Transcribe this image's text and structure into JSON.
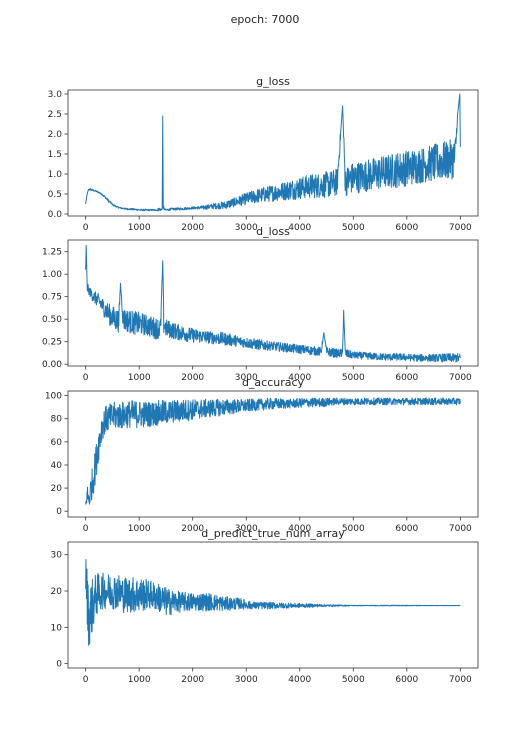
{
  "figure": {
    "suptitle": "epoch:  7000"
  },
  "colors": {
    "line": "#1f77b4",
    "axes": "#333333",
    "text": "#262626"
  },
  "chart_data": [
    {
      "type": "line",
      "title": "g_loss",
      "xlim": [
        -330,
        7330
      ],
      "ylim": [
        -0.05,
        3.1
      ],
      "xticks": [
        0,
        1000,
        2000,
        3000,
        4000,
        5000,
        6000,
        7000
      ],
      "xtick_labels": [
        "0",
        "1000",
        "2000",
        "3000",
        "4000",
        "5000",
        "6000",
        "7000"
      ],
      "yticks": [
        0.0,
        0.5,
        1.0,
        1.5,
        2.0,
        2.5,
        3.0
      ],
      "ytick_labels": [
        "0.0",
        "0.5",
        "1.0",
        "1.5",
        "2.0",
        "2.5",
        "3.0"
      ],
      "series": [
        {
          "x": [
            0,
            20,
            50,
            80,
            120,
            170,
            230,
            300,
            380,
            450,
            520,
            580,
            650,
            750,
            850,
            950,
            1050,
            1150,
            1250,
            1330,
            1380,
            1410,
            1430,
            1440,
            1450,
            1470,
            1500,
            1600,
            1800,
            2000,
            2200,
            2400,
            2600,
            2800,
            3000,
            3200,
            3400,
            3600,
            3800,
            4000,
            4200,
            4400,
            4600,
            4700,
            4800,
            4850,
            4900,
            5000,
            5200,
            5400,
            5600,
            5800,
            6000,
            6200,
            6400,
            6600,
            6800,
            6900,
            6950,
            6990,
            7000
          ],
          "y": [
            0.25,
            0.45,
            0.6,
            0.62,
            0.6,
            0.58,
            0.55,
            0.5,
            0.4,
            0.3,
            0.22,
            0.18,
            0.15,
            0.13,
            0.12,
            0.11,
            0.1,
            0.1,
            0.1,
            0.1,
            0.12,
            0.1,
            0.15,
            2.45,
            0.18,
            0.12,
            0.1,
            0.12,
            0.13,
            0.15,
            0.16,
            0.2,
            0.22,
            0.3,
            0.38,
            0.45,
            0.5,
            0.55,
            0.6,
            0.65,
            0.7,
            0.72,
            0.75,
            0.8,
            2.7,
            0.8,
            0.85,
            0.9,
            0.95,
            1.0,
            1.05,
            1.1,
            1.15,
            1.2,
            1.25,
            1.3,
            1.35,
            1.4,
            2.5,
            3.0,
            1.4
          ],
          "noise": [
            0.0,
            0.0,
            0.02,
            0.03,
            0.02,
            0.02,
            0.02,
            0.02,
            0.03,
            0.03,
            0.02,
            0.02,
            0.02,
            0.02,
            0.02,
            0.02,
            0.02,
            0.02,
            0.02,
            0.02,
            0.05,
            0.02,
            0.05,
            0.0,
            0.05,
            0.02,
            0.02,
            0.03,
            0.03,
            0.03,
            0.05,
            0.07,
            0.1,
            0.12,
            0.15,
            0.18,
            0.2,
            0.22,
            0.25,
            0.28,
            0.3,
            0.32,
            0.34,
            0.35,
            0.0,
            0.36,
            0.38,
            0.4,
            0.4,
            0.42,
            0.42,
            0.45,
            0.45,
            0.45,
            0.45,
            0.48,
            0.5,
            0.5,
            0.0,
            0.0,
            0.5
          ]
        }
      ]
    },
    {
      "type": "line",
      "title": "d_loss",
      "xlim": [
        -330,
        7330
      ],
      "ylim": [
        -0.02,
        1.38
      ],
      "xticks": [
        0,
        1000,
        2000,
        3000,
        4000,
        5000,
        6000,
        7000
      ],
      "xtick_labels": [
        "0",
        "1000",
        "2000",
        "3000",
        "4000",
        "5000",
        "6000",
        "7000"
      ],
      "yticks": [
        0.0,
        0.25,
        0.5,
        0.75,
        1.0,
        1.25
      ],
      "ytick_labels": [
        "0.00",
        "0.25",
        "0.50",
        "0.75",
        "1.00",
        "1.25"
      ],
      "series": [
        {
          "x": [
            0,
            10,
            30,
            80,
            150,
            250,
            350,
            450,
            550,
            620,
            650,
            700,
            800,
            900,
            1000,
            1100,
            1200,
            1300,
            1400,
            1440,
            1460,
            1500,
            1700,
            2000,
            2300,
            2600,
            2900,
            3200,
            3500,
            3800,
            4100,
            4400,
            4450,
            4500,
            4700,
            4800,
            4820,
            4850,
            5000,
            5300,
            5600,
            5900,
            6200,
            6500,
            6800,
            7000
          ],
          "y": [
            1.05,
            1.32,
            0.85,
            0.8,
            0.75,
            0.7,
            0.62,
            0.55,
            0.5,
            0.48,
            0.9,
            0.5,
            0.48,
            0.46,
            0.45,
            0.44,
            0.42,
            0.4,
            0.4,
            1.15,
            0.45,
            0.4,
            0.36,
            0.32,
            0.3,
            0.28,
            0.25,
            0.22,
            0.2,
            0.18,
            0.16,
            0.14,
            0.35,
            0.14,
            0.12,
            0.12,
            0.6,
            0.12,
            0.1,
            0.09,
            0.08,
            0.08,
            0.07,
            0.07,
            0.07,
            0.07
          ],
          "noise": [
            0.0,
            0.0,
            0.05,
            0.05,
            0.07,
            0.08,
            0.1,
            0.12,
            0.13,
            0.13,
            0.0,
            0.13,
            0.13,
            0.13,
            0.13,
            0.12,
            0.12,
            0.12,
            0.12,
            0.0,
            0.12,
            0.1,
            0.09,
            0.08,
            0.07,
            0.07,
            0.06,
            0.06,
            0.05,
            0.05,
            0.05,
            0.05,
            0.0,
            0.05,
            0.05,
            0.05,
            0.0,
            0.05,
            0.04,
            0.04,
            0.04,
            0.04,
            0.04,
            0.04,
            0.05,
            0.05
          ]
        }
      ]
    },
    {
      "type": "line",
      "title": "d_accuracy",
      "xlim": [
        -330,
        7330
      ],
      "ylim": [
        -5,
        104
      ],
      "xticks": [
        0,
        1000,
        2000,
        3000,
        4000,
        5000,
        6000,
        7000
      ],
      "xtick_labels": [
        "0",
        "1000",
        "2000",
        "3000",
        "4000",
        "5000",
        "6000",
        "7000"
      ],
      "yticks": [
        0,
        20,
        40,
        60,
        80,
        100
      ],
      "ytick_labels": [
        "0",
        "20",
        "40",
        "60",
        "80",
        "100"
      ],
      "series": [
        {
          "x": [
            0,
            30,
            60,
            100,
            150,
            200,
            250,
            300,
            350,
            400,
            500,
            600,
            700,
            800,
            900,
            1000,
            1200,
            1400,
            1600,
            1800,
            2000,
            2300,
            2600,
            2900,
            3200,
            3500,
            3800,
            4100,
            4400,
            4700,
            5000,
            5500,
            6000,
            6500,
            7000
          ],
          "y": [
            5,
            15,
            10,
            20,
            30,
            45,
            60,
            72,
            78,
            80,
            82,
            83,
            83,
            84,
            84,
            84,
            84,
            85,
            86,
            87,
            88,
            89,
            90,
            91,
            92,
            93,
            93,
            94,
            94,
            95,
            95,
            95,
            95,
            95,
            95
          ],
          "noise": [
            3,
            8,
            10,
            12,
            15,
            15,
            14,
            12,
            12,
            12,
            12,
            12,
            12,
            12,
            12,
            12,
            11,
            11,
            10,
            10,
            9,
            8,
            7,
            6,
            5,
            5,
            4,
            4,
            4,
            3,
            3,
            3,
            3,
            3,
            3
          ]
        }
      ]
    },
    {
      "type": "line",
      "title": "d_predict_true_num_array",
      "xlim": [
        -330,
        7330
      ],
      "ylim": [
        -1.2,
        33.5
      ],
      "xticks": [
        0,
        1000,
        2000,
        3000,
        4000,
        5000,
        6000,
        7000
      ],
      "xtick_labels": [
        "0",
        "1000",
        "2000",
        "3000",
        "4000",
        "5000",
        "6000",
        "7000"
      ],
      "yticks": [
        0,
        10,
        20,
        30
      ],
      "ytick_labels": [
        "0",
        "10",
        "20",
        "30"
      ],
      "series": [
        {
          "x": [
            0,
            30,
            60,
            100,
            150,
            200,
            300,
            400,
            500,
            600,
            700,
            800,
            900,
            1000,
            1200,
            1400,
            1500,
            1700,
            2000,
            2300,
            2600,
            2900,
            3100,
            3300,
            3600,
            4000,
            4500,
            5000,
            5500,
            6000,
            6500,
            7000
          ],
          "y": [
            25,
            18,
            12,
            15,
            17,
            19,
            20,
            20,
            20,
            20,
            19,
            19,
            19,
            19,
            19,
            18,
            17,
            17,
            17,
            17,
            16.5,
            16.5,
            16,
            16,
            16,
            16,
            16,
            16,
            16,
            16,
            16,
            16
          ],
          "noise": [
            6,
            8,
            8,
            8,
            7,
            6,
            5,
            5,
            5,
            5,
            5,
            5,
            5,
            5,
            4,
            4,
            4,
            3,
            2.5,
            2.5,
            2,
            1.5,
            1,
            1,
            0.8,
            0.6,
            0.3,
            0.1,
            0.1,
            0.1,
            0.05,
            0.05
          ]
        }
      ]
    }
  ]
}
